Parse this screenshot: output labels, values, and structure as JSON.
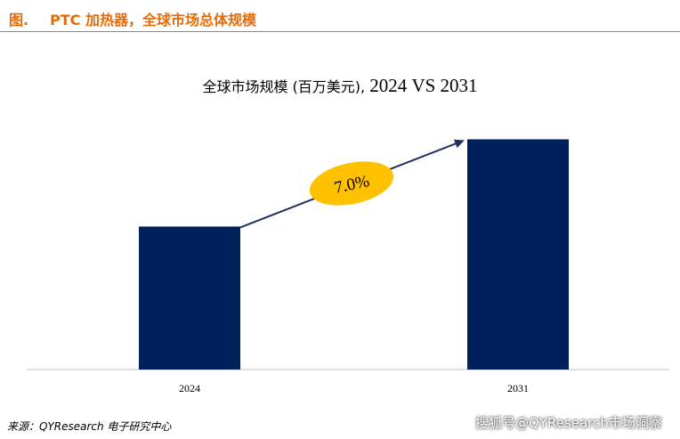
{
  "figure": {
    "label": "图.",
    "title": "PTC 加热器，全球市场总体规模"
  },
  "source": "来源：QYResearch 电子研究中心",
  "watermark": "搜狐号@QYResearch市场洞察",
  "colors": {
    "bar": "#00205b",
    "header": "#e36c09",
    "badge": "#ffc000",
    "arrow": "#1f2f5f"
  },
  "chart_data": {
    "type": "bar",
    "title_cn": "全球市场规模 (百万美元),",
    "title_en": "2024 VS 2031",
    "categories": [
      "2024",
      "2031"
    ],
    "values": [
      100,
      161
    ],
    "growth_label": "7.0%",
    "ylim": [
      0,
      170
    ],
    "grid": false,
    "legend": "none"
  }
}
